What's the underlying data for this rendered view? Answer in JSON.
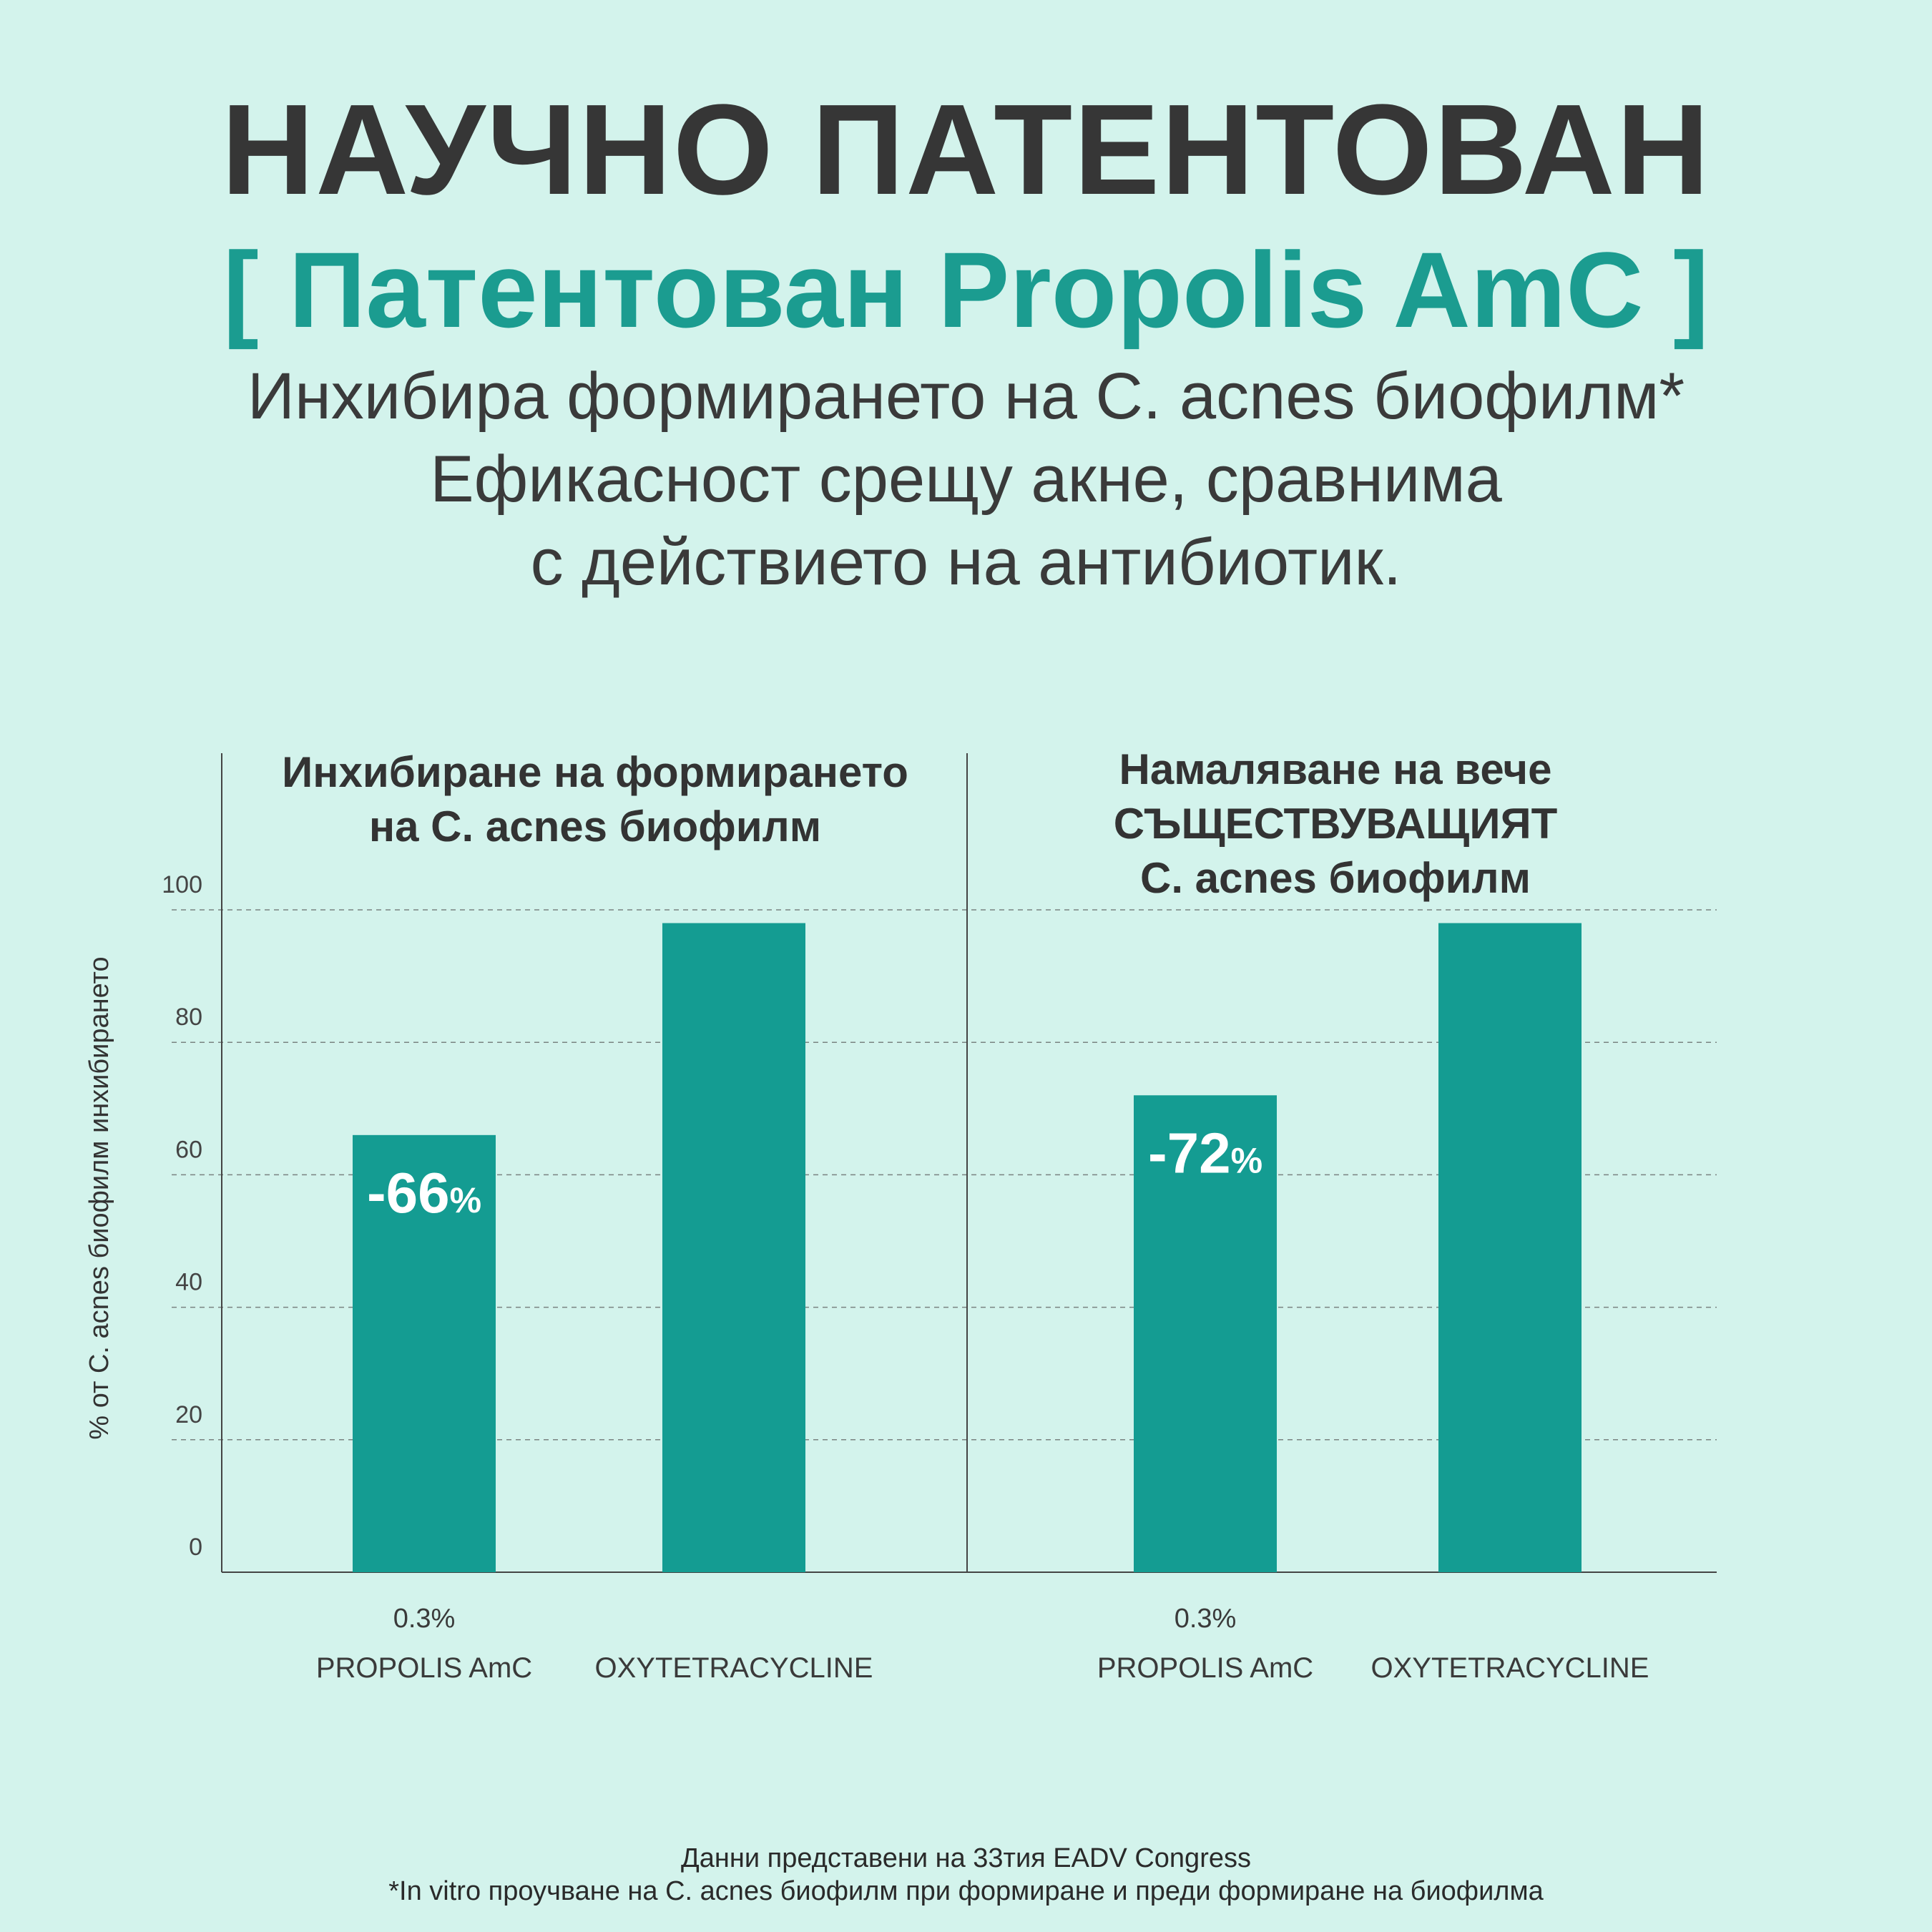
{
  "header": {
    "title": "НАУЧНО ПАТЕНТОВАН",
    "subtitle": "[ Патентован Propolis AmC ]",
    "tagline_1": "Инхибира формирането на C. acnes биофилм*",
    "tagline_2": "Ефикасност срещу акне, сравнима",
    "tagline_3": "с действието на антибиотик."
  },
  "colors": {
    "background": "#d3f3ec",
    "bar": "#149c92",
    "accent": "#1b9c90",
    "text": "#383838"
  },
  "chart_data": [
    {
      "type": "bar",
      "title_lines": [
        "Инхибиране на формирането",
        "на C. acnes биофилм"
      ],
      "ylabel": "% от C. acnes биофилм инхибирането",
      "ylim": [
        0,
        100
      ],
      "yticks": [
        0,
        20,
        40,
        60,
        80,
        100
      ],
      "grid": true,
      "categories": [
        {
          "line1": "0.3%",
          "line2": "PROPOLIS AmC"
        },
        {
          "line1": "",
          "line2": "OXYTETRACYCLINE"
        }
      ],
      "values": [
        66,
        98
      ],
      "data_labels": [
        {
          "value": "-66",
          "unit": "%"
        },
        null
      ]
    },
    {
      "type": "bar",
      "title_lines": [
        "Намаляване на вече",
        "СЪЩЕСТВУВАЩИЯТ",
        "C. acnes биофилм"
      ],
      "ylim": [
        0,
        100
      ],
      "grid": true,
      "categories": [
        {
          "line1": "0.3%",
          "line2": "PROPOLIS AmC"
        },
        {
          "line1": "",
          "line2": "OXYTETRACYCLINE"
        }
      ],
      "values": [
        72,
        98
      ],
      "data_labels": [
        {
          "value": "-72",
          "unit": "%"
        },
        null
      ]
    }
  ],
  "footer": {
    "line_1": "Данни представени на 33тия EADV Congress",
    "line_2": "*In vitro проучване на C. acnes биофилм при формиране и преди формиране на биофилма"
  }
}
